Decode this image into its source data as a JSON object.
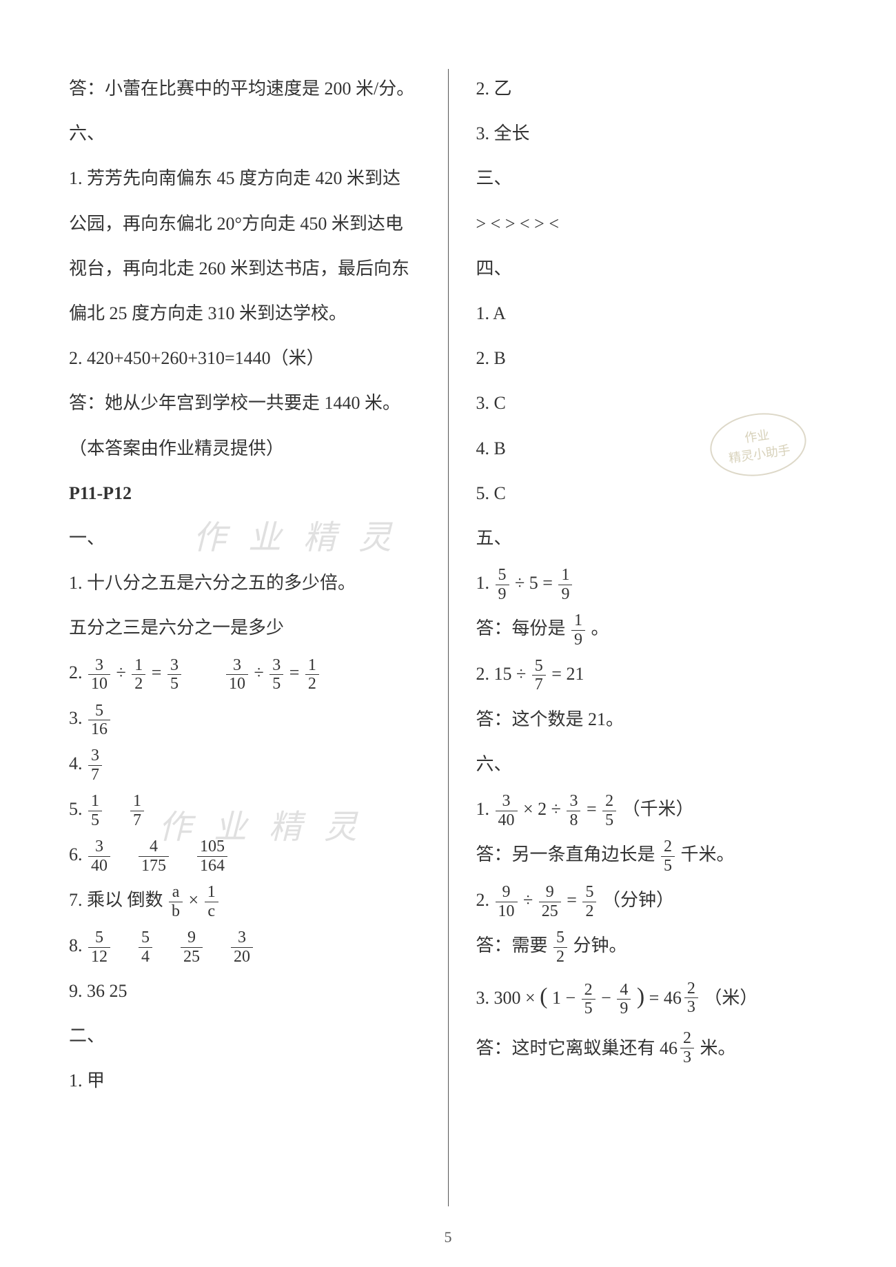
{
  "watermarks": {
    "wm1": "作 业 精 灵",
    "wm2": "作 业 精 灵",
    "stamp_top": "作业",
    "stamp_bottom": "精灵小助手"
  },
  "page_number": "5",
  "left": {
    "l1": "答：小蕾在比赛中的平均速度是 200 米/分。",
    "l2": "六、",
    "l3": "1.  芳芳先向南偏东 45 度方向走 420 米到达",
    "l4": "公园，再向东偏北 20°方向走 450 米到达电",
    "l5": "视台，再向北走 260 米到达书店，最后向东",
    "l6": "偏北 25 度方向走 310 米到达学校。",
    "l7": "2.  420+450+260+310=1440（米）",
    "l8": "答：她从少年宫到学校一共要走 1440 米。",
    "l9": "（本答案由作业精灵提供）",
    "l10": "P11-P12",
    "l11": "一、",
    "l12": "1.  十八分之五是六分之五的多少倍。",
    "l13": "     五分之三是六分之一是多少",
    "q2a_pre": "2.  ",
    "f_3": "3",
    "f_10": "10",
    "div": "÷",
    "f_1": "1",
    "f_2": "2",
    "eq": "=",
    "f_3b": "3",
    "f_5": "5",
    "f_3c": "3",
    "f_10b": "10",
    "f_3d": "3",
    "f_5b": "5",
    "f_1b": "1",
    "f_2b": "2",
    "q3_pre": "3.  ",
    "f3n": "5",
    "f3d": "16",
    "q4_pre": "4.  ",
    "f4n": "3",
    "f4d": "7",
    "q5_pre": "5.  ",
    "f5an": "1",
    "f5ad": "5",
    "f5bn": "1",
    "f5bd": "7",
    "q6_pre": "6.  ",
    "f6an": "3",
    "f6ad": "40",
    "f6bn": "4",
    "f6bd": "175",
    "f6cn": "105",
    "f6cd": "164",
    "q7_pre": "7.  乘以    倒数    ",
    "f7an": "a",
    "f7ad": "b",
    "times": "×",
    "f7bn": "1",
    "f7bd": "c",
    "q8_pre": "8.  ",
    "f8an": "5",
    "f8ad": "12",
    "f8bn": "5",
    "f8bd": "4",
    "f8cn": "9",
    "f8cd": "25",
    "f8dn": "3",
    "f8dd": "20",
    "l22": "9.  36    25",
    "l23": "二、",
    "l24": "1.   甲"
  },
  "right": {
    "r1": "2.   乙",
    "r2": "3.   全长",
    "r3": "三、",
    "r4": ">    <    >    <    >    <",
    "r5": "四、",
    "r6": "1.   A",
    "r7": "2.   B",
    "r8": "3.   C",
    "r9": "4.   B",
    "r10": "5.   C",
    "r11": "五、",
    "q51_pre": "1.   ",
    "f51an": "5",
    "f51ad": "9",
    "div5": "÷",
    "five": "5",
    "eq5": "=",
    "f51bn": "1",
    "f51bd": "9",
    "r13a": "答：每份是",
    "f13n": "1",
    "f13d": "9",
    "r13b": "。",
    "q52_pre": "2.   ",
    "n15": "15",
    "div52": "÷",
    "f52n": "5",
    "f52d": "7",
    "eq52": "=",
    "n21": "21",
    "r15": "答：这个数是 21。",
    "r16": "六、",
    "q61_pre": "1.   ",
    "f61an": "3",
    "f61ad": "40",
    "t61": "×",
    "two": "2",
    "d61": "÷",
    "f61bn": "3",
    "f61bd": "8",
    "e61": "=",
    "f61cn": "2",
    "f61cd": "5",
    "km": "（千米）",
    "r18a": "答：另一条直角边长是",
    "f18n": "2",
    "f18d": "5",
    "r18b": "千米。",
    "q62_pre": "2.   ",
    "f62an": "9",
    "f62ad": "10",
    "d62": "÷",
    "f62bn": "9",
    "f62bd": "25",
    "e62": "=",
    "f62cn": "5",
    "f62cd": "2",
    "min": "（分钟）",
    "r20a": "答：需要",
    "f20n": "5",
    "f20d": "2",
    "r20b": "分钟。",
    "q63_pre": "3.   ",
    "n300": "300",
    "t63": "×",
    "lp": "(",
    "one": "1",
    "minus": "−",
    "f63an": "2",
    "f63ad": "5",
    "f63bn": "4",
    "f63bd": "9",
    "rp": ")",
    "e63": "=",
    "w46": "46",
    "f63cn": "2",
    "f63cd": "3",
    "meter": "（米）",
    "r22a": "答：这时它离蚁巢还有",
    "w22": "46",
    "f22n": "2",
    "f22d": "3",
    "r22b": "米。"
  }
}
